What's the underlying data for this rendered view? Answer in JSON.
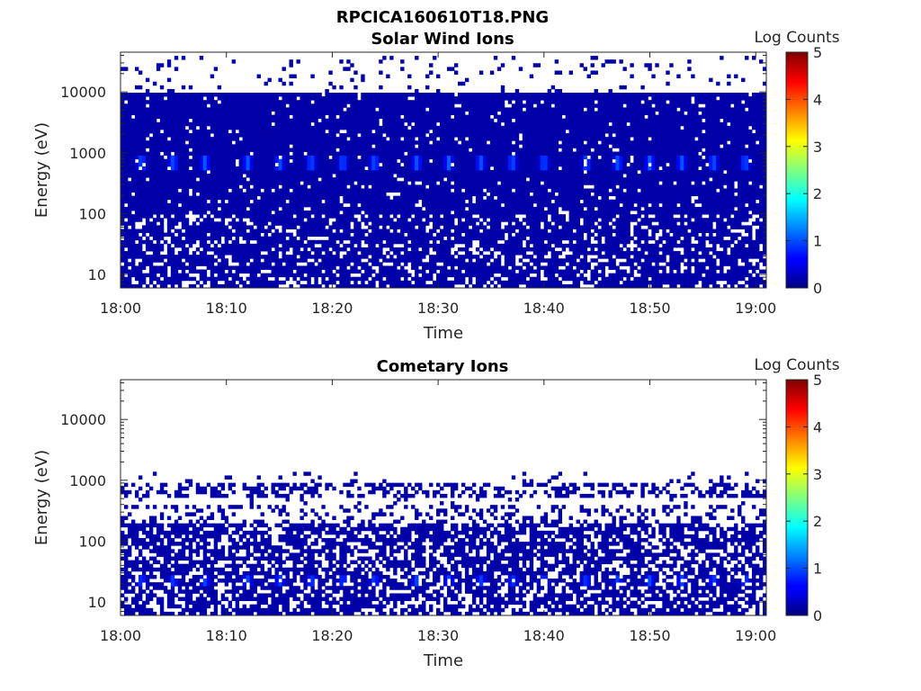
{
  "figure": {
    "title": "RPCICA160610T18.PNG"
  },
  "chart_data": [
    {
      "type": "heatmap",
      "title": "Solar Wind Ions",
      "xlabel": "Time",
      "ylabel": "Energy (eV)",
      "x_ticks": [
        "18:00",
        "18:10",
        "18:20",
        "18:30",
        "18:40",
        "18:50",
        "19:00"
      ],
      "xlim": [
        "18:00",
        "19:01"
      ],
      "y_scale": "log",
      "y_ticks": [
        "10",
        "100",
        "1000",
        "10000"
      ],
      "ylim": [
        6,
        45000
      ],
      "colorbar": {
        "label": "Log Counts",
        "ticks": [
          "0",
          "1",
          "2",
          "3",
          "4",
          "5"
        ],
        "range": [
          0,
          5
        ],
        "colormap": "jet"
      },
      "description_of_values": {
        "background_energy_range_eV": [
          6,
          10000
        ],
        "background_log_counts": 0.2,
        "peak_band_center_eV": 700,
        "peak_band_log_counts": 1.1,
        "peak_times": [
          "18:02",
          "18:05",
          "18:08",
          "18:12",
          "18:15",
          "18:18",
          "18:21",
          "18:24",
          "18:28",
          "18:31",
          "18:34",
          "18:37",
          "18:40",
          "18:44",
          "18:47",
          "18:50",
          "18:53",
          "18:56",
          "18:59"
        ],
        "gap_energy_eV": 200
      }
    },
    {
      "type": "heatmap",
      "title": "Cometary Ions",
      "xlabel": "Time",
      "ylabel": "Energy (eV)",
      "x_ticks": [
        "18:00",
        "18:10",
        "18:20",
        "18:30",
        "18:40",
        "18:50",
        "19:00"
      ],
      "xlim": [
        "18:00",
        "19:01"
      ],
      "y_scale": "log",
      "y_ticks": [
        "10",
        "100",
        "1000",
        "10000"
      ],
      "ylim": [
        6,
        45000
      ],
      "colorbar": {
        "label": "Log Counts",
        "ticks": [
          "0",
          "1",
          "2",
          "3",
          "4",
          "5"
        ],
        "range": [
          0,
          5
        ],
        "colormap": "jet"
      },
      "description_of_values": {
        "band_energy_range_eV": [
          6,
          1400
        ],
        "background_log_counts": 0.2,
        "peak_band_center_eV": 22,
        "peak_band_log_counts": 1.0,
        "upper_band_eV": [
          500,
          900
        ],
        "peak_times": [
          "18:02",
          "18:05",
          "18:08",
          "18:12",
          "18:15",
          "18:18",
          "18:21",
          "18:24",
          "18:28",
          "18:31",
          "18:34",
          "18:37",
          "18:40",
          "18:44",
          "18:47",
          "18:50",
          "18:53",
          "18:56",
          "18:59"
        ]
      }
    }
  ]
}
